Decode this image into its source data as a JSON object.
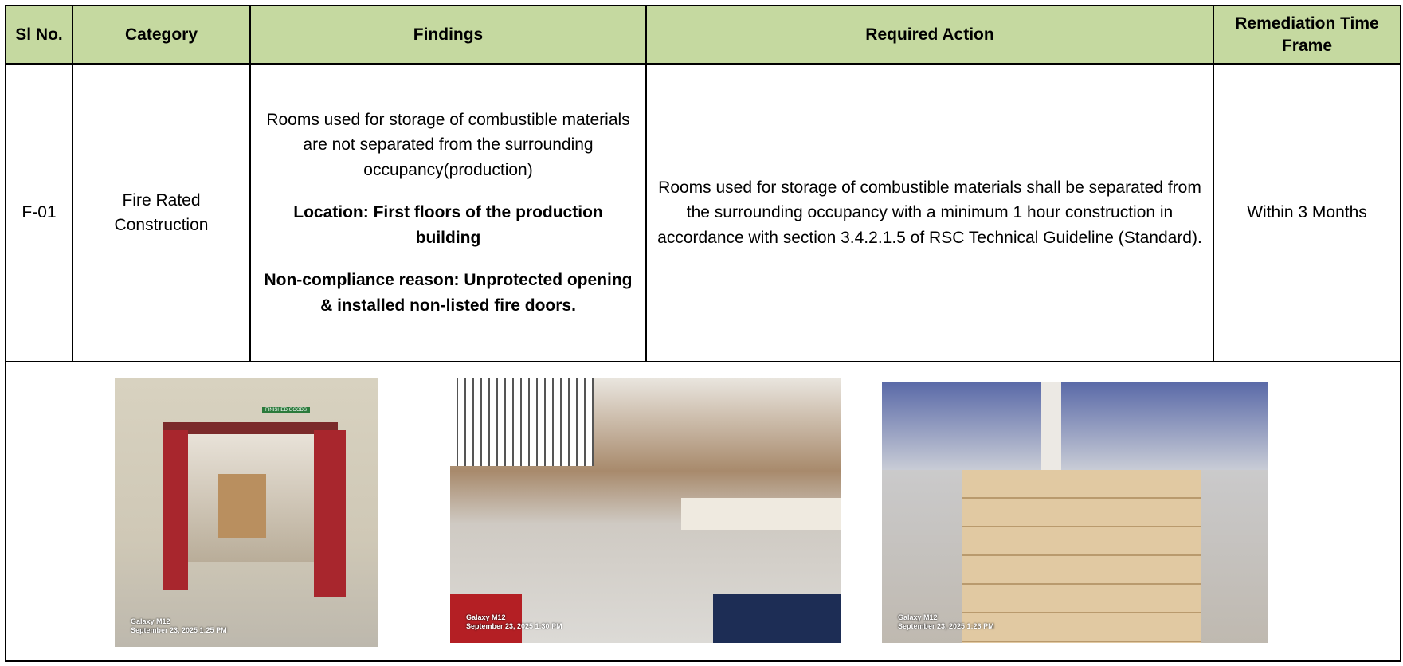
{
  "table": {
    "headers": [
      "Sl No.",
      "Category",
      "Findings",
      "Required Action",
      "Remediation Time Frame"
    ],
    "rows": [
      {
        "sl_no": "F-01",
        "category": "Fire Rated Construction",
        "findings": {
          "description": "Rooms used for storage of combustible materials are not separated from the surrounding occupancy(production)",
          "location": "Location:  First floors of the production building",
          "reason": "Non-compliance reason:  Unprotected opening & installed non-listed fire doors."
        },
        "required_action": "Rooms used for storage of combustible materials shall be separated from the surrounding occupancy with a minimum 1 hour construction in accordance with section 3.4.2.1.5 of RSC Technical Guideline (Standard).",
        "time_frame": "Within 3 Months"
      }
    ],
    "photos": [
      {
        "sign": "FINISHED GOODS",
        "device": "Galaxy M12",
        "timestamp": "September 23, 2025 1:25 PM"
      },
      {
        "device": "Galaxy M12",
        "timestamp": "September 23, 2025 1:30 PM"
      },
      {
        "device": "Galaxy M12",
        "timestamp": "September 23, 2025 1:26 PM"
      }
    ]
  }
}
